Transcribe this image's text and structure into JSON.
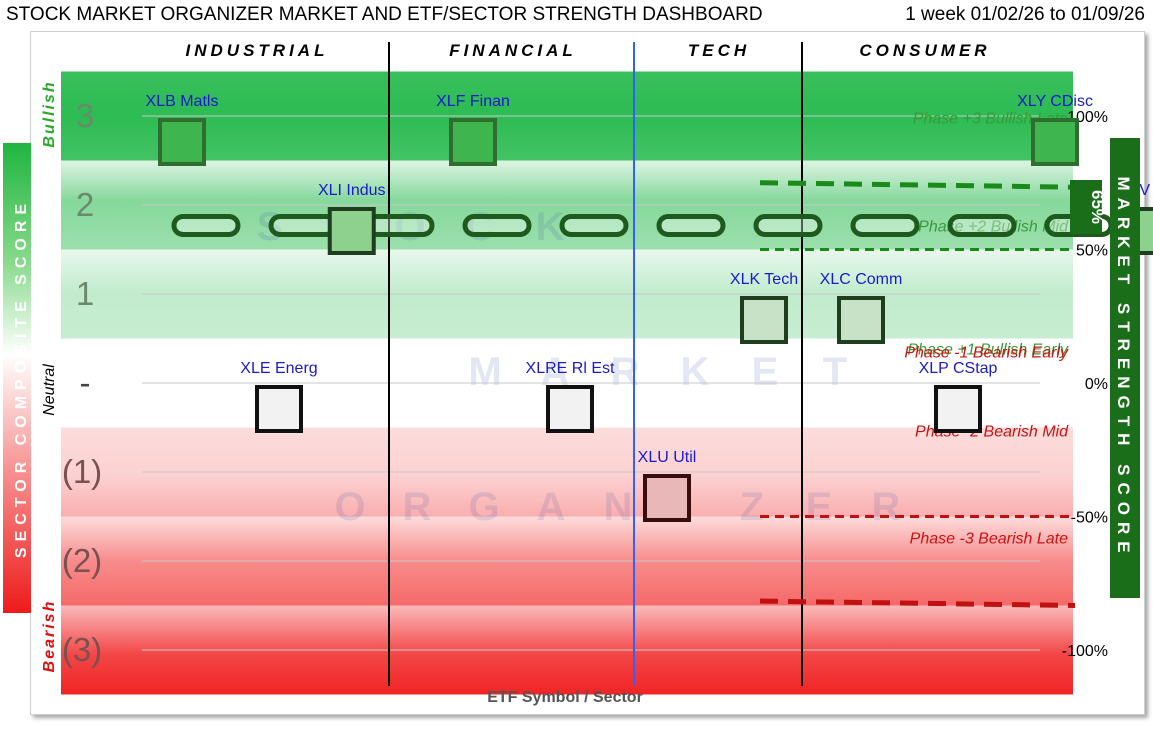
{
  "header": {
    "title": "STOCK MARKET ORGANIZER MARKET AND ETF/SECTOR STRENGTH DASHBOARD",
    "period": "1 week 01/02/26 to 01/09/26"
  },
  "chart_data": {
    "type": "scatter",
    "x_label": "ETF Symbol / Sector",
    "y_left_label": "SECTOR COMPOSITE SCORE",
    "y_right_label": "MARKET STRENGTH SCORE",
    "y_left_ticks": [
      {
        "value": 3,
        "label": "3"
      },
      {
        "value": 2,
        "label": "2"
      },
      {
        "value": 1,
        "label": "1"
      },
      {
        "value": 0,
        "label": "-"
      },
      {
        "value": -1,
        "label": "(1)"
      },
      {
        "value": -2,
        "label": "(2)"
      },
      {
        "value": -3,
        "label": "(3)"
      }
    ],
    "y_right_ticks": [
      {
        "value": 3,
        "label": "100%"
      },
      {
        "value": 1.5,
        "label": "50%"
      },
      {
        "value": 0,
        "label": "0%"
      },
      {
        "value": -1.5,
        "label": "-50%"
      },
      {
        "value": -3,
        "label": "-100%"
      }
    ],
    "side_labels": {
      "bullish": "Bullish",
      "neutral": "Neutral",
      "bearish": "Bearish"
    },
    "groups": [
      "INDUSTRIAL",
      "FINANCIAL",
      "TECH",
      "CONSUMER"
    ],
    "phases": [
      {
        "score": 3,
        "label": "Phase +3 Bullish Late",
        "color": "#3a9a3a"
      },
      {
        "score": 2,
        "label": "Phase +2 Bullish Mid",
        "color": "#3a9a3a"
      },
      {
        "score": 1,
        "label": "Phase +1 Bullish Early",
        "color": "#3a9a3a"
      },
      {
        "score": -1,
        "label": "Phase -1 Bearish Early",
        "color": "#d01010"
      },
      {
        "score": -2,
        "label": "Phase -2 Bearish Mid",
        "color": "#d01010"
      },
      {
        "score": -3,
        "label": "Phase -3 Bearish Late",
        "color": "#d01010"
      }
    ],
    "etfs": [
      {
        "label": "XLB Matls",
        "slot": 1,
        "score": 3
      },
      {
        "label": "XLF Finan",
        "slot": 4,
        "score": 3
      },
      {
        "label": "XLY CDisc",
        "slot": 10,
        "score": 3
      },
      {
        "label": "XLI Indus",
        "slot": 2.75,
        "score": 2
      },
      {
        "label": "XLV Hlth",
        "slot": 11,
        "score": 2
      },
      {
        "label": "XLK Tech",
        "slot": 7,
        "score": 1
      },
      {
        "label": "XLC Comm",
        "slot": 8,
        "score": 1
      },
      {
        "label": "XLE Energ",
        "slot": 2,
        "score": 0
      },
      {
        "label": "XLRE Rl Est",
        "slot": 5,
        "score": 0
      },
      {
        "label": "XLP CStap",
        "slot": 9,
        "score": 0
      },
      {
        "label": "XLU Util",
        "slot": 6,
        "score": -1
      }
    ],
    "market_strength": {
      "value": 65,
      "unit": "%",
      "label": "65%",
      "score": 1.95
    },
    "upper_threshold": {
      "score_start": 2.25,
      "score_end": 2.2,
      "color": "#1a8a1a"
    },
    "bullish_threshold": {
      "score": 1.5,
      "color": "#1a8a1a"
    },
    "bearish_threshold": {
      "score": -1.5,
      "color": "#c01010"
    },
    "lower_threshold": {
      "score_start": -2.45,
      "score_end": -2.5,
      "color": "#c01010"
    },
    "watermark": [
      "STOCK",
      "MARKET",
      "ORGANIZER"
    ],
    "colors": {
      "bullish": "#22b84a",
      "bearish": "#f01818",
      "etf_label": "#1a1acc",
      "market_box": "#1a6e1a"
    }
  }
}
